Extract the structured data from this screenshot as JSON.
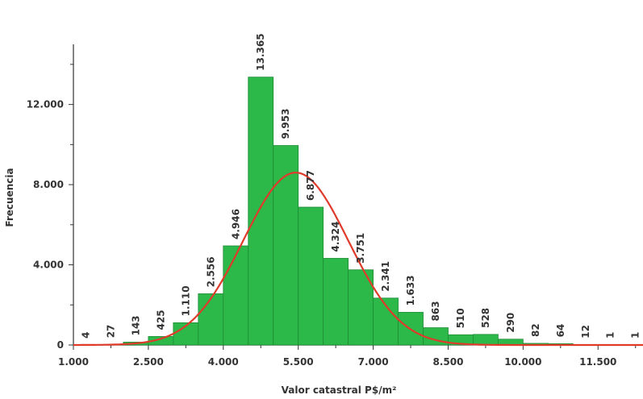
{
  "chart_data": {
    "type": "bar",
    "title": "",
    "xlabel": "Valor catastral P$/m²",
    "ylabel": "Frecuencia",
    "bin_start": 1000,
    "bin_width": 500,
    "values": [
      4,
      27,
      143,
      425,
      1110,
      2556,
      4946,
      13365,
      9953,
      6877,
      4324,
      3751,
      2341,
      1633,
      863,
      510,
      528,
      290,
      82,
      64,
      12,
      1,
      1
    ],
    "value_labels": [
      "4",
      "27",
      "143",
      "425",
      "1.110",
      "2.556",
      "4.946",
      "13.365",
      "9.953",
      "6.877",
      "4.324",
      "3.751",
      "2.341",
      "1.633",
      "863",
      "510",
      "528",
      "290",
      "82",
      "64",
      "12",
      "1",
      "1"
    ],
    "xlim": [
      1000,
      12400
    ],
    "ylim": [
      0,
      15000
    ],
    "x_ticks": [
      1000,
      2500,
      4000,
      5500,
      7000,
      8500,
      10000,
      11500
    ],
    "x_tick_labels": [
      "1.000",
      "2.500",
      "4.000",
      "5.500",
      "7.000",
      "8.500",
      "10.000",
      "11.500"
    ],
    "y_ticks": [
      0,
      4000,
      8000,
      12000
    ],
    "y_tick_labels": [
      "0",
      "4.000",
      "8.000",
      "12.000"
    ],
    "normal_curve": {
      "mean": 5450,
      "std": 1050,
      "peak": 8600
    },
    "colors": {
      "bar_fill": "#2db84a",
      "bar_stroke": "#1e8c35",
      "curve": "#e03a2b",
      "axis": "#333333"
    }
  }
}
